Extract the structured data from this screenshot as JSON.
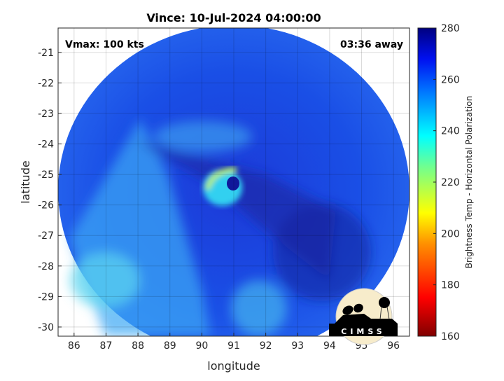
{
  "chart_data": {
    "type": "heatmap",
    "title": "Vince: 10-Jul-2024 04:00:00",
    "xlabel": "longitude",
    "ylabel": "latitude",
    "xlim": [
      85.5,
      96.5
    ],
    "ylim": [
      -30.3,
      -20.2
    ],
    "xticks": [
      86,
      87,
      88,
      89,
      90,
      91,
      92,
      93,
      94,
      95,
      96
    ],
    "yticks": [
      -21,
      -22,
      -23,
      -24,
      -25,
      -26,
      -27,
      -28,
      -29,
      -30
    ],
    "grid": true,
    "annotations": {
      "vmax": "Vmax: 100 kts",
      "time_away": "03:36 away"
    },
    "storm_center": {
      "lon": 90.9,
      "lat": -25.2
    },
    "colorbar": {
      "label": "Brightness Temp - Horizontal Polarization",
      "range": [
        160,
        280
      ],
      "ticks": [
        160,
        180,
        200,
        220,
        240,
        260,
        280
      ],
      "colormap": "jet",
      "colors": [
        "#800000",
        "#ff0000",
        "#ff8000",
        "#ffff00",
        "#80ff80",
        "#00ffff",
        "#0080ff",
        "#0000ff",
        "#000080"
      ]
    },
    "logo": "CIMSS"
  }
}
